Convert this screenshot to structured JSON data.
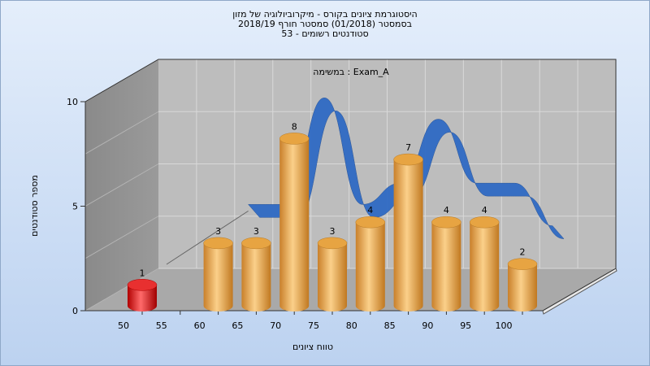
{
  "chart_data": {
    "type": "bar",
    "title": [
      "היסטוגרמת ציונים בקורס - מיקרוביולוגיה של מזון",
      "בסמסטר  (01/2018)  סמסטר חורף 2018/19",
      "סטודנטים רשומים - 53"
    ],
    "annotation": "במשימה : Exam_A",
    "xlabel": "טווח ציונים",
    "ylabel": "מספר סטודנטים",
    "categories": [
      "50",
      "55",
      "60",
      "65",
      "70",
      "75",
      "80",
      "85",
      "90",
      "95",
      "100"
    ],
    "y_ticks": [
      "0",
      "5",
      "10"
    ],
    "ylim": [
      0,
      10
    ],
    "series": [
      {
        "values": [
          1,
          null,
          3,
          3,
          8,
          3,
          4,
          7,
          4,
          4,
          2
        ]
      }
    ],
    "bar_colors": {
      "fail": "#e01414",
      "pass": "#f0a83c"
    },
    "trend_color": "#2f6ac4",
    "grid": true,
    "legend": "none"
  }
}
